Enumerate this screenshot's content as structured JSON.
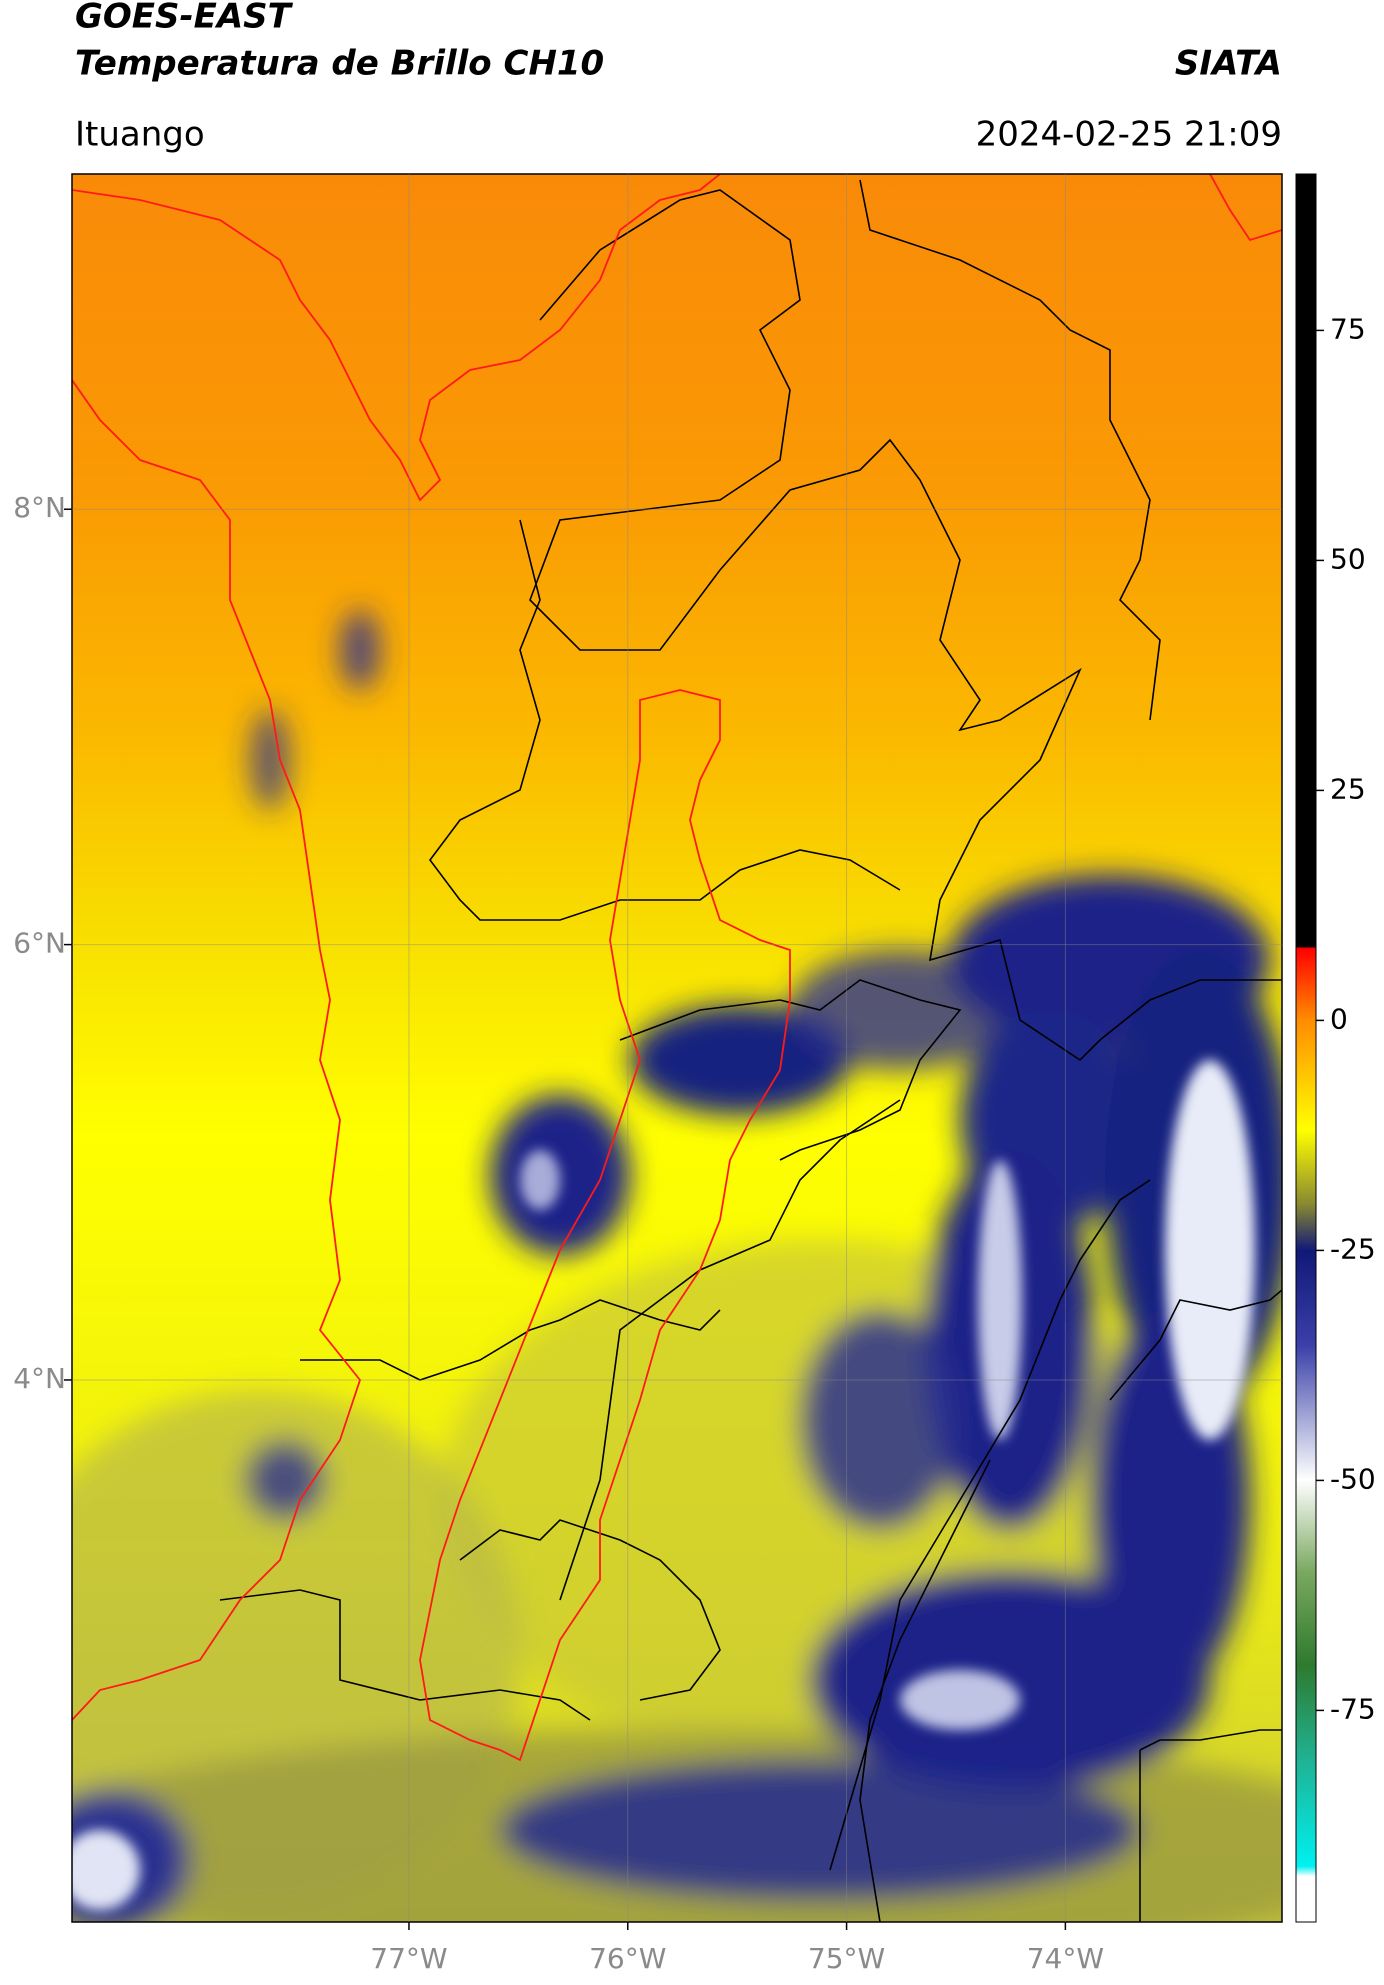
{
  "header": {
    "title_line1": "GOES-EAST",
    "title_line2": "Temperatura de Brillo CH10",
    "brand": "SIATA",
    "location": "Ituango",
    "datetime": "2024-02-25 21:09"
  },
  "map": {
    "xlim": [
      -78.54,
      -73.01
    ],
    "ylim": [
      1.51,
      9.54
    ],
    "grid": true,
    "xticks": [
      {
        "value": -77,
        "label": "77°W"
      },
      {
        "value": -76,
        "label": "76°W"
      },
      {
        "value": -75,
        "label": "75°W"
      },
      {
        "value": -74,
        "label": "74°W"
      }
    ],
    "yticks": [
      {
        "value": 8,
        "label": "8°N"
      },
      {
        "value": 6,
        "label": "6°N"
      },
      {
        "value": 4,
        "label": "4°N"
      }
    ]
  },
  "colorbar": {
    "lim": [
      -98,
      92
    ],
    "ticks": [
      75,
      50,
      25,
      0,
      -25,
      -50,
      -75
    ]
  }
}
